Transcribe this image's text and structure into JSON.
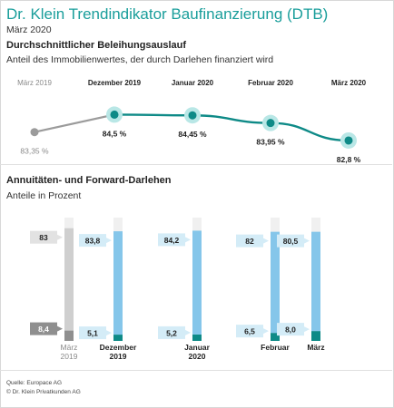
{
  "header": {
    "title": "Dr. Klein Trendindikator Baufinanzierung (DTB)",
    "subtitle": "März 2020"
  },
  "colors": {
    "accent": "#1a9e9b",
    "line": "#0e8a87",
    "past": "#9b9b9b",
    "halo": "#b9e7e6",
    "bar_light": "#85c6ea",
    "bar_dark": "#0e8a87",
    "bar_past_light": "#cfcfcf",
    "bar_past_dark": "#8f8f8f",
    "bar_rest": "#f0f0f0",
    "label_bg": "#d4ecf7",
    "label_past_bg": "#e2e2e2",
    "label_past_dark_bg": "#8f8f8f"
  },
  "chart_data": [
    {
      "type": "line",
      "title": "Durchschnittlicher Beleihungsauslauf",
      "subtitle": "Anteil des Immobilienwertes, der durch Darlehen finanziert wird",
      "categories": [
        "März 2019",
        "Dezember 2019",
        "Januar 2020",
        "Februar 2020",
        "März 2020"
      ],
      "values": [
        83.35,
        84.5,
        84.45,
        83.95,
        82.8
      ],
      "value_labels": [
        "83,35 %",
        "84,5 %",
        "84,45 %",
        "83,95 %",
        "82,8 %"
      ],
      "ylim": [
        82.5,
        85.0
      ],
      "grid": false
    },
    {
      "type": "bar",
      "stacked": true,
      "title": "Annuitäten- und Forward-Darlehen",
      "subtitle": "Anteile in Prozent",
      "categories": [
        "März\n2019",
        "Dezember\n2019",
        "Januar\n2020",
        "Februar",
        "März"
      ],
      "series": [
        {
          "values": [
            8.4,
            5.1,
            5.2,
            6.5,
            8.0
          ],
          "labels": [
            "8,4",
            "5,1",
            "5,2",
            "6,5",
            "8,0"
          ]
        },
        {
          "values": [
            83,
            83.8,
            84.2,
            82,
            80.5
          ],
          "labels": [
            "83",
            "83,8",
            "84,2",
            "82",
            "80,5"
          ]
        }
      ],
      "ylim": [
        0,
        100
      ],
      "grid": false
    }
  ],
  "footer": {
    "source": "Quelle: Europace AG",
    "copyright": "© Dr. Klein Privatkunden AG"
  }
}
